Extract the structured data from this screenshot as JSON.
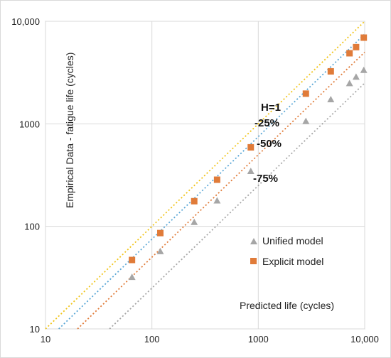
{
  "chart_data": {
    "type": "scatter",
    "xscale": "log",
    "yscale": "log",
    "xlim": [
      10,
      10000
    ],
    "ylim": [
      10,
      10000
    ],
    "xticks": [
      10,
      100,
      1000,
      10000
    ],
    "xtick_labels": [
      "10",
      "100",
      "1000",
      "10,000"
    ],
    "yticks": [
      10,
      100,
      1000,
      10000
    ],
    "ytick_labels": [
      "10",
      "100",
      "1000",
      "10,000"
    ],
    "xlabel": "Predicted life (cycles)",
    "ylabel": "Empirical Data - fatigue life (cycles)",
    "grid": true,
    "legend_position": "lower-right",
    "series": [
      {
        "name": "Unified model",
        "marker": "triangle",
        "color": "#a6a6a6",
        "points": [
          [
            65,
            32
          ],
          [
            120,
            57
          ],
          [
            250,
            110
          ],
          [
            410,
            178
          ],
          [
            850,
            345
          ],
          [
            2800,
            1060
          ],
          [
            4800,
            1730
          ],
          [
            7200,
            2480
          ],
          [
            8300,
            2870
          ],
          [
            9800,
            3340
          ]
        ]
      },
      {
        "name": "Explicit model",
        "marker": "square",
        "color": "#e07b39",
        "points": [
          [
            65,
            47
          ],
          [
            120,
            86
          ],
          [
            250,
            176
          ],
          [
            410,
            285
          ],
          [
            850,
            590
          ],
          [
            2800,
            1970
          ],
          [
            4800,
            3250
          ],
          [
            7200,
            4880
          ],
          [
            8300,
            5600
          ],
          [
            9800,
            6930
          ]
        ]
      }
    ],
    "reference_lines": [
      {
        "label": "H=1",
        "factor": 1.0,
        "color": "#f0c419"
      },
      {
        "label": "-25%",
        "factor": 0.75,
        "color": "#5aa7d6"
      },
      {
        "label": "-50%",
        "factor": 0.5,
        "color": "#e07b39"
      },
      {
        "label": "-75%",
        "factor": 0.25,
        "color": "#a6a6a6"
      }
    ]
  }
}
